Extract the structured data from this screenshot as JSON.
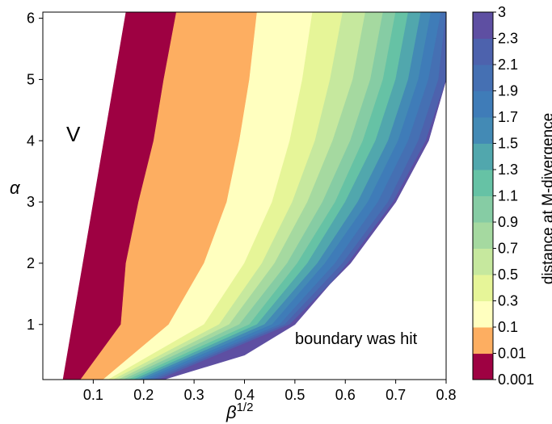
{
  "chart_data": {
    "type": "contour",
    "xlabel_base": "β",
    "xlabel_sup": "1/2",
    "ylabel": "α",
    "xlim": [
      0.0,
      0.8
    ],
    "ylim": [
      0.1,
      6.1
    ],
    "x_ticks": [
      0.1,
      0.2,
      0.3,
      0.4,
      0.5,
      0.6,
      0.7,
      0.8
    ],
    "y_ticks": [
      1,
      2,
      3,
      4,
      5,
      6
    ],
    "x_tick_labels": [
      "0.1",
      "0.2",
      "0.3",
      "0.4",
      "0.5",
      "0.6",
      "0.7",
      "0.8"
    ],
    "y_tick_labels": [
      "1",
      "2",
      "3",
      "4",
      "5",
      "6"
    ],
    "annotations": {
      "region_v": "V",
      "boundary": "boundary was hit"
    },
    "colorbar": {
      "label": "distance at M-divergence",
      "levels": [
        "0.001",
        "0.01",
        "0.1",
        "0.3",
        "0.5",
        "0.7",
        "0.9",
        "1.1",
        "1.3",
        "1.5",
        "1.7",
        "1.9",
        "2.1",
        "2.3",
        "3"
      ],
      "colors": [
        "#9e0142",
        "#fdae61",
        "#ffffbf",
        "#e6f598",
        "#c6e89e",
        "#a5d9a0",
        "#86cca4",
        "#66c2a5",
        "#51a7ad",
        "#438ab5",
        "#3f7cb8",
        "#4570b3",
        "#4d62ad",
        "#5e4fa2"
      ]
    },
    "boundaries": [
      {
        "name": "left-edge",
        "y": [
          0.1,
          6.1
        ],
        "x": [
          0.04,
          0.165
        ]
      },
      {
        "name": "b1",
        "y": [
          0.1,
          1,
          2,
          3,
          4,
          5,
          6.1
        ],
        "x": [
          0.075,
          0.155,
          0.165,
          0.19,
          0.22,
          0.24,
          0.265
        ]
      },
      {
        "name": "b2",
        "y": [
          0.1,
          1,
          2,
          3,
          4,
          5,
          6.1
        ],
        "x": [
          0.12,
          0.25,
          0.32,
          0.365,
          0.39,
          0.41,
          0.425
        ]
      },
      {
        "name": "b3",
        "y": [
          0.1,
          1,
          2,
          3,
          4,
          5,
          6.1
        ],
        "x": [
          0.13,
          0.32,
          0.4,
          0.455,
          0.49,
          0.515,
          0.535
        ]
      },
      {
        "name": "b4",
        "y": [
          0.1,
          1,
          2,
          3,
          4,
          5,
          6.1
        ],
        "x": [
          0.14,
          0.35,
          0.435,
          0.495,
          0.54,
          0.57,
          0.595
        ]
      },
      {
        "name": "b5",
        "y": [
          0.1,
          1,
          2,
          3,
          4,
          5,
          6.1
        ],
        "x": [
          0.15,
          0.37,
          0.46,
          0.525,
          0.575,
          0.615,
          0.64
        ]
      },
      {
        "name": "b6",
        "y": [
          0.1,
          1,
          2,
          3,
          4,
          5,
          6.1
        ],
        "x": [
          0.16,
          0.39,
          0.485,
          0.555,
          0.61,
          0.65,
          0.675
        ]
      },
      {
        "name": "b7",
        "y": [
          0.1,
          1,
          2,
          3,
          4,
          5,
          6.1
        ],
        "x": [
          0.17,
          0.41,
          0.505,
          0.58,
          0.635,
          0.675,
          0.7
        ]
      },
      {
        "name": "b8",
        "y": [
          0.1,
          1,
          2,
          3,
          4,
          5,
          6.1
        ],
        "x": [
          0.18,
          0.425,
          0.525,
          0.6,
          0.66,
          0.7,
          0.725
        ]
      },
      {
        "name": "b9",
        "y": [
          0.1,
          1,
          2,
          3,
          4,
          5,
          6.1
        ],
        "x": [
          0.19,
          0.44,
          0.545,
          0.625,
          0.685,
          0.725,
          0.75
        ]
      },
      {
        "name": "b10",
        "y": [
          0.1,
          1,
          2,
          3,
          4,
          5,
          6.1
        ],
        "x": [
          0.2,
          0.455,
          0.56,
          0.645,
          0.705,
          0.745,
          0.77
        ]
      },
      {
        "name": "b11",
        "y": [
          0.1,
          1,
          2,
          3,
          4,
          5,
          6.1
        ],
        "x": [
          0.21,
          0.47,
          0.58,
          0.665,
          0.725,
          0.765,
          0.79
        ]
      },
      {
        "name": "b12",
        "y": [
          0.1,
          1,
          2,
          3,
          4,
          5,
          6.1
        ],
        "x": [
          0.22,
          0.48,
          0.595,
          0.685,
          0.745,
          0.785,
          0.8
        ]
      },
      {
        "name": "b13",
        "y": [
          0.1,
          1,
          2,
          3,
          4,
          5,
          6.1
        ],
        "x": [
          0.23,
          0.49,
          0.61,
          0.7,
          0.765,
          0.8,
          0.8
        ]
      },
      {
        "name": "hit-boundary",
        "y": [
          0.1,
          0.5,
          1,
          2,
          3,
          4,
          5,
          5.5
        ],
        "x": [
          0.24,
          0.4,
          0.5,
          0.605,
          0.695,
          0.76,
          0.8,
          0.8
        ]
      }
    ]
  }
}
